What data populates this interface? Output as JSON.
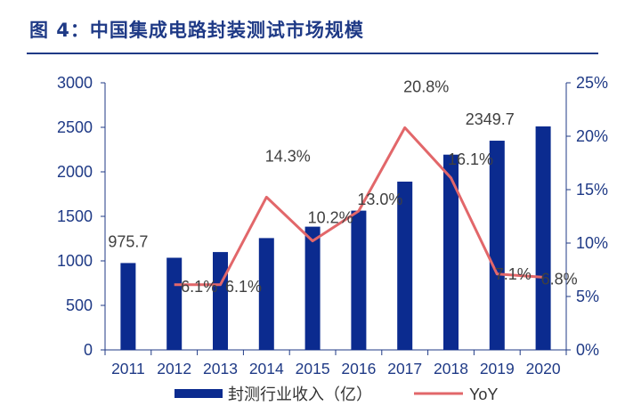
{
  "title": "图 4：中国集成电路封装测试市场规模",
  "chart_data": {
    "type": "bar",
    "categories": [
      "2011",
      "2012",
      "2013",
      "2014",
      "2015",
      "2016",
      "2017",
      "2018",
      "2019",
      "2020"
    ],
    "series": [
      {
        "name": "封测行业收入（亿）",
        "type": "bar",
        "axis": "left",
        "values": [
          975.7,
          1035,
          1099,
          1256,
          1384,
          1564,
          1890,
          2193,
          2349.7,
          2510
        ],
        "color": "#0b2b8f"
      },
      {
        "name": "YoY",
        "type": "line",
        "axis": "right",
        "values": [
          null,
          6.1,
          6.1,
          14.3,
          10.2,
          13.0,
          20.8,
          16.1,
          7.1,
          6.8
        ],
        "color": "#e2676a"
      }
    ],
    "data_labels": [
      {
        "text": "975.7",
        "series": 0,
        "index": 0
      },
      {
        "text": "6.1%",
        "series": 1,
        "index": 1
      },
      {
        "text": "6.1%",
        "series": 1,
        "index": 2
      },
      {
        "text": "14.3%",
        "series": 1,
        "index": 3
      },
      {
        "text": "10.2%",
        "series": 1,
        "index": 4
      },
      {
        "text": "13.0%",
        "series": 1,
        "index": 5
      },
      {
        "text": "20.8%",
        "series": 1,
        "index": 6
      },
      {
        "text": "16.1%",
        "series": 1,
        "index": 7
      },
      {
        "text": "2349.7",
        "series": 0,
        "index": 8
      },
      {
        "text": "7.1%",
        "series": 1,
        "index": 8
      },
      {
        "text": "6.8%",
        "series": 1,
        "index": 9
      }
    ],
    "y_left": {
      "ticks": [
        "0",
        "500",
        "1000",
        "1500",
        "2000",
        "2500",
        "3000"
      ],
      "ylim": [
        0,
        3000
      ]
    },
    "y_right": {
      "ticks": [
        "0%",
        "5%",
        "10%",
        "15%",
        "20%",
        "25%"
      ],
      "ylim": [
        0,
        25
      ]
    },
    "grid": false,
    "legend_position": "bottom"
  }
}
